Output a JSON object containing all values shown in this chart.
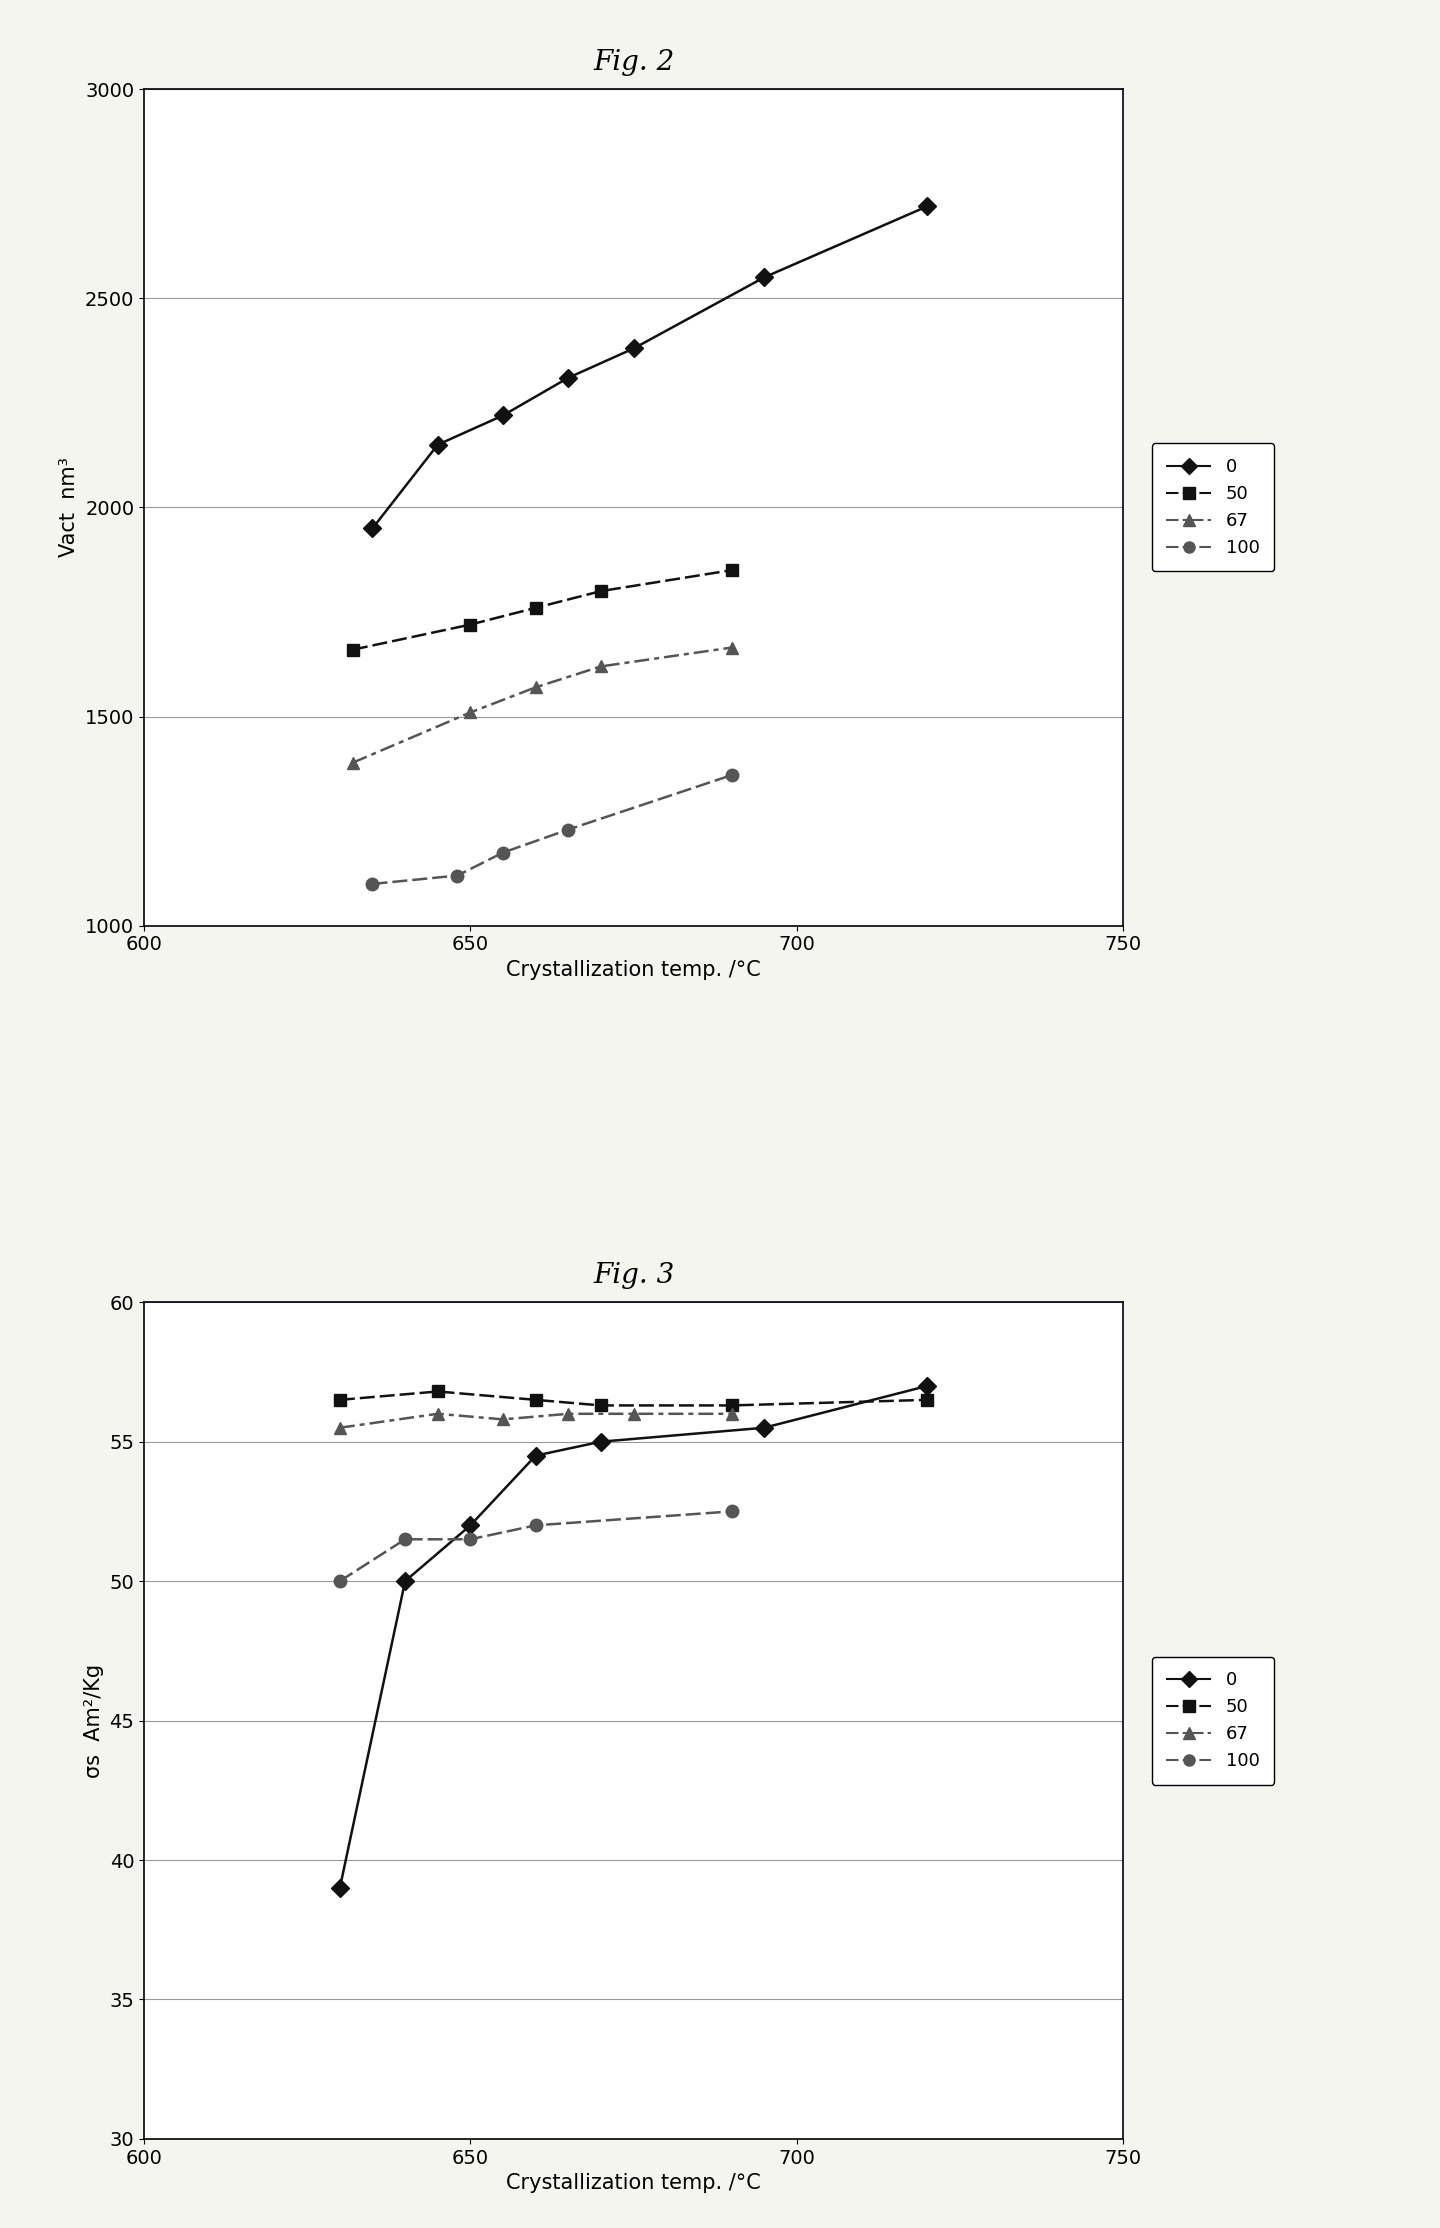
{
  "fig2_title": "Fig. 2",
  "fig3_title": "Fig. 3",
  "fig2": {
    "series": {
      "0": {
        "x": [
          635,
          645,
          655,
          665,
          675,
          695,
          720
        ],
        "y": [
          1950,
          2150,
          2220,
          2310,
          2380,
          2550,
          2720
        ],
        "marker": "D",
        "linestyle": "-",
        "label": "0"
      },
      "50": {
        "x": [
          632,
          650,
          660,
          670,
          690
        ],
        "y": [
          1660,
          1720,
          1760,
          1800,
          1850
        ],
        "marker": "s",
        "linestyle": "dashed_square",
        "label": "50"
      },
      "67": {
        "x": [
          632,
          650,
          660,
          670,
          690
        ],
        "y": [
          1390,
          1510,
          1570,
          1620,
          1665
        ],
        "marker": "^",
        "linestyle": "dashed_tri",
        "label": "67"
      },
      "100": {
        "x": [
          635,
          648,
          655,
          665,
          690
        ],
        "y": [
          1100,
          1120,
          1175,
          1230,
          1360
        ],
        "marker": "o",
        "linestyle": "dashed_circle",
        "label": "100"
      }
    },
    "xlabel": "Crystallization temp. /°C",
    "ylabel": "Vact  nm³",
    "xlim": [
      600,
      750
    ],
    "ylim": [
      1000,
      3000
    ],
    "yticks": [
      1000,
      1500,
      2000,
      2500,
      3000
    ],
    "xticks": [
      600,
      650,
      700,
      750
    ]
  },
  "fig3": {
    "series": {
      "0": {
        "x": [
          630,
          640,
          650,
          660,
          670,
          695,
          720
        ],
        "y": [
          39.0,
          50.0,
          52.0,
          54.5,
          55.0,
          55.5,
          57.0
        ],
        "marker": "D",
        "linestyle": "-",
        "label": "0"
      },
      "50": {
        "x": [
          630,
          645,
          660,
          670,
          690,
          720
        ],
        "y": [
          56.5,
          56.8,
          56.5,
          56.3,
          56.3,
          56.5
        ],
        "marker": "s",
        "linestyle": "dashed_square",
        "label": "50"
      },
      "67": {
        "x": [
          630,
          645,
          655,
          665,
          675,
          690
        ],
        "y": [
          55.5,
          56.0,
          55.8,
          56.0,
          56.0,
          56.0
        ],
        "marker": "^",
        "linestyle": "dashed_tri",
        "label": "67"
      },
      "100": {
        "x": [
          630,
          640,
          650,
          660,
          690
        ],
        "y": [
          50.0,
          51.5,
          51.5,
          52.0,
          52.5
        ],
        "marker": "o",
        "linestyle": "dashed_circle",
        "label": "100"
      }
    },
    "xlabel": "Crystallization temp. /°C",
    "ylabel": "σs  Am²/Kg",
    "xlim": [
      600,
      750
    ],
    "ylim": [
      30.0,
      60.0
    ],
    "yticks": [
      30.0,
      35.0,
      40.0,
      45.0,
      50.0,
      55.0,
      60.0
    ],
    "xticks": [
      600,
      650,
      700,
      750
    ]
  },
  "background_color": "#f5f5f0",
  "grid_color": "#999999",
  "title_fontsize": 20,
  "axis_label_fontsize": 15,
  "tick_fontsize": 14,
  "legend_fontsize": 13
}
